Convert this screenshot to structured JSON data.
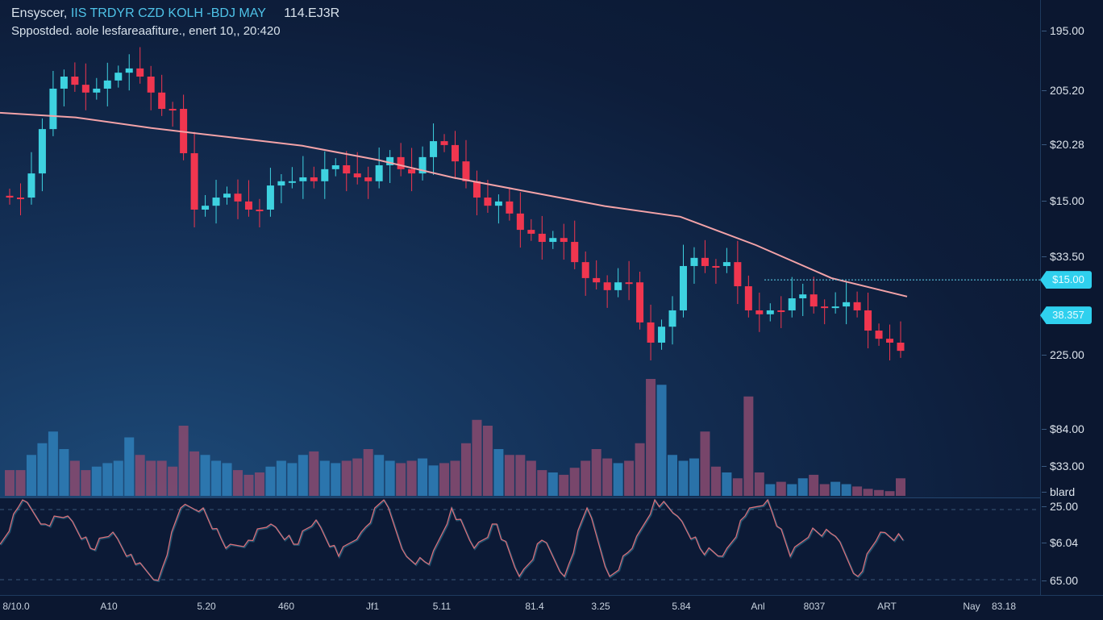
{
  "header": {
    "title_prefix": "Ensyscer,",
    "symbol": "IIS TRDYR CZD KOLH -BDJ MAY",
    "price": "114.EJ3R",
    "subtitle": "Sppostded. aole lesfareaafiture., enert 10,, 20:420"
  },
  "colors": {
    "up": "#3ed2e0",
    "down": "#f0364f",
    "ma": "#f3a3a8",
    "vol_up": "#2f7fb8",
    "vol_down": "#8a4a6e",
    "osc": "#e0707a",
    "osc_shadow": "#3bb4d0"
  },
  "y_axis": {
    "labels": [
      "195.00",
      "205.20",
      "$20.28",
      "$15.00",
      "$33.50",
      "225.00",
      "$84.00",
      "$33.00",
      "blard",
      "25.00",
      "$6.04",
      "65.00"
    ]
  },
  "tags": [
    {
      "label": "$15.00",
      "price": 30.2
    },
    {
      "label": "38.357",
      "price": 20.2
    }
  ],
  "x_axis": {
    "labels": [
      "8/10.0",
      "A10",
      "5.20",
      "460",
      "Jf1",
      "5.11",
      "81.4",
      "3.25",
      "5.84",
      "Anl",
      "8037",
      "ART",
      "Nay",
      "83.18"
    ]
  },
  "chart_data": {
    "type": "candlestick",
    "title": "Ensyscer, IIS TRDYR CZD KOLH -BDJ MAY",
    "ylim": [
      0,
      100
    ],
    "close": [
      53.4,
      53.4,
      60.2,
      72.7,
      84.1,
      87.5,
      85.2,
      83,
      84.1,
      86.4,
      88.6,
      89.8,
      87.5,
      83,
      78.4,
      78.4,
      65.9,
      50,
      51.1,
      53.4,
      54.5,
      52.3,
      50,
      50,
      56.8,
      58,
      58,
      59.1,
      58,
      61.4,
      62.5,
      60.2,
      59.1,
      58,
      62.5,
      64.8,
      61.4,
      60.2,
      64.8,
      69.3,
      68.2,
      63.6,
      58,
      53.4,
      51.1,
      52.3,
      48.9,
      44.3,
      43.2,
      40.9,
      42,
      40.9,
      35.2,
      30.7,
      29.5,
      27.3,
      29.5,
      29.5,
      18.2,
      12.5,
      17,
      21.6,
      34.1,
      36.4,
      34.1,
      34.1,
      35.2,
      28.4,
      21.6,
      20.5,
      21.6,
      21.6,
      25,
      26.1,
      22.7,
      22.7,
      22.7,
      23.9,
      21.6,
      15.9,
      13.6,
      12.5,
      10.2
    ],
    "moving_average": [
      77.3,
      76,
      73,
      70.5,
      68,
      64,
      59,
      55,
      51,
      48,
      40,
      30.7,
      25.5
    ],
    "volume": [
      22,
      22,
      35,
      45,
      55,
      40,
      30,
      22,
      25,
      28,
      30,
      50,
      35,
      30,
      30,
      25,
      60,
      38,
      35,
      30,
      28,
      22,
      18,
      20,
      25,
      30,
      28,
      35,
      38,
      30,
      28,
      30,
      32,
      40,
      35,
      30,
      28,
      30,
      32,
      26,
      28,
      30,
      45,
      65,
      60,
      40,
      35,
      35,
      30,
      22,
      20,
      18,
      24,
      30,
      40,
      32,
      28,
      30,
      45,
      100,
      95,
      35,
      30,
      32,
      55,
      25,
      20,
      15,
      85,
      20,
      10,
      12,
      10,
      15,
      18,
      10,
      12,
      10,
      8,
      6,
      5,
      4,
      15
    ],
    "oscillator": [
      45,
      100,
      70,
      80,
      40,
      60,
      20,
      0,
      90,
      90,
      40,
      50,
      70,
      45,
      75,
      30,
      60,
      100,
      30,
      20,
      90,
      40,
      70,
      5,
      50,
      5,
      90,
      5,
      40,
      100,
      80,
      40,
      30,
      80,
      100,
      30,
      65,
      55,
      5,
      60,
      50
    ]
  }
}
